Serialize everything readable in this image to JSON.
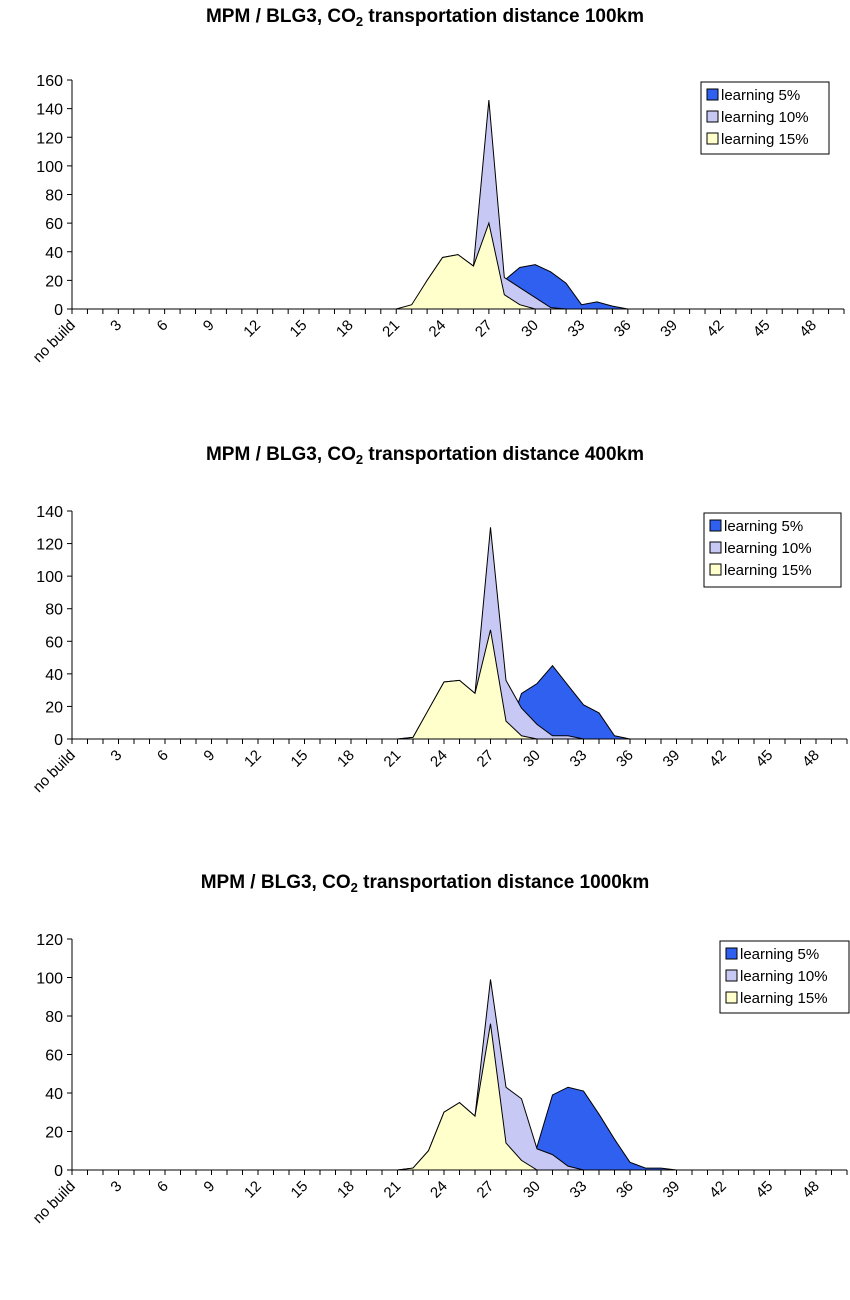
{
  "chart_data": [
    {
      "type": "area",
      "title": {
        "prefix": "MPM / BLG3, CO",
        "subscript": "2",
        "suffix": " transportation distance 100km"
      },
      "ylim": [
        0,
        160
      ],
      "yticks": [
        0,
        20,
        40,
        60,
        80,
        100,
        120,
        140,
        160
      ],
      "xlim": [
        0,
        50
      ],
      "x_tick_labels": [
        {
          "x": 0,
          "label": "no build"
        },
        {
          "x": 3,
          "label": "3"
        },
        {
          "x": 6,
          "label": "6"
        },
        {
          "x": 9,
          "label": "9"
        },
        {
          "x": 12,
          "label": "12"
        },
        {
          "x": 15,
          "label": "15"
        },
        {
          "x": 18,
          "label": "18"
        },
        {
          "x": 21,
          "label": "21"
        },
        {
          "x": 24,
          "label": "24"
        },
        {
          "x": 27,
          "label": "27"
        },
        {
          "x": 30,
          "label": "30"
        },
        {
          "x": 33,
          "label": "33"
        },
        {
          "x": 36,
          "label": "36"
        },
        {
          "x": 39,
          "label": "39"
        },
        {
          "x": 42,
          "label": "42"
        },
        {
          "x": 45,
          "label": "45"
        },
        {
          "x": 48,
          "label": "48"
        }
      ],
      "legend_position": "top-right",
      "series": [
        {
          "name": "learning 5%",
          "color": "#3060f0",
          "points": [
            [
              0,
              0
            ],
            [
              27,
              0
            ],
            [
              28,
              20
            ],
            [
              29,
              29
            ],
            [
              30,
              31
            ],
            [
              31,
              26
            ],
            [
              32,
              18
            ],
            [
              33,
              3
            ],
            [
              34,
              5
            ],
            [
              35,
              2
            ],
            [
              36,
              0
            ],
            [
              50,
              0
            ]
          ]
        },
        {
          "name": "learning 10%",
          "color": "#c8c8f4",
          "points": [
            [
              0,
              0
            ],
            [
              21,
              0
            ],
            [
              22,
              2
            ],
            [
              23,
              20
            ],
            [
              24,
              36
            ],
            [
              25,
              38
            ],
            [
              26,
              30
            ],
            [
              27,
              146
            ],
            [
              28,
              22
            ],
            [
              29,
              15
            ],
            [
              30,
              8
            ],
            [
              31,
              1
            ],
            [
              32,
              0
            ],
            [
              50,
              0
            ]
          ]
        },
        {
          "name": "learning 15%",
          "color": "#ffffcc",
          "points": [
            [
              0,
              0
            ],
            [
              21,
              0
            ],
            [
              22,
              3
            ],
            [
              23,
              20
            ],
            [
              24,
              36
            ],
            [
              25,
              38
            ],
            [
              26,
              30
            ],
            [
              27,
              60
            ],
            [
              28,
              10
            ],
            [
              29,
              3
            ],
            [
              30,
              0
            ],
            [
              50,
              0
            ]
          ]
        }
      ]
    },
    {
      "type": "area",
      "title": {
        "prefix": "MPM / BLG3, CO",
        "subscript": "2",
        "suffix": " transportation distance 400km"
      },
      "ylim": [
        0,
        140
      ],
      "yticks": [
        0,
        20,
        40,
        60,
        80,
        100,
        120,
        140
      ],
      "xlim": [
        0,
        50
      ],
      "x_tick_labels": [
        {
          "x": 0,
          "label": "no build"
        },
        {
          "x": 3,
          "label": "3"
        },
        {
          "x": 6,
          "label": "6"
        },
        {
          "x": 9,
          "label": "9"
        },
        {
          "x": 12,
          "label": "12"
        },
        {
          "x": 15,
          "label": "15"
        },
        {
          "x": 18,
          "label": "18"
        },
        {
          "x": 21,
          "label": "21"
        },
        {
          "x": 24,
          "label": "24"
        },
        {
          "x": 27,
          "label": "27"
        },
        {
          "x": 30,
          "label": "30"
        },
        {
          "x": 33,
          "label": "33"
        },
        {
          "x": 36,
          "label": "36"
        },
        {
          "x": 39,
          "label": "39"
        },
        {
          "x": 42,
          "label": "42"
        },
        {
          "x": 45,
          "label": "45"
        },
        {
          "x": 48,
          "label": "48"
        }
      ],
      "legend_position": "top-right",
      "series": [
        {
          "name": "learning 5%",
          "color": "#3060f0",
          "points": [
            [
              0,
              0
            ],
            [
              28,
              0
            ],
            [
              29,
              28
            ],
            [
              30,
              34
            ],
            [
              31,
              45
            ],
            [
              32,
              33
            ],
            [
              33,
              21
            ],
            [
              34,
              16
            ],
            [
              35,
              2
            ],
            [
              36,
              0
            ],
            [
              50,
              0
            ]
          ]
        },
        {
          "name": "learning 10%",
          "color": "#c8c8f4",
          "points": [
            [
              0,
              0
            ],
            [
              21,
              0
            ],
            [
              22,
              1
            ],
            [
              23,
              18
            ],
            [
              24,
              35
            ],
            [
              25,
              36
            ],
            [
              26,
              28
            ],
            [
              27,
              130
            ],
            [
              28,
              36
            ],
            [
              29,
              19
            ],
            [
              30,
              9
            ],
            [
              31,
              2
            ],
            [
              32,
              2
            ],
            [
              33,
              0
            ],
            [
              50,
              0
            ]
          ]
        },
        {
          "name": "learning 15%",
          "color": "#ffffcc",
          "points": [
            [
              0,
              0
            ],
            [
              21,
              0
            ],
            [
              22,
              1
            ],
            [
              23,
              18
            ],
            [
              24,
              35
            ],
            [
              25,
              36
            ],
            [
              26,
              28
            ],
            [
              27,
              67
            ],
            [
              28,
              11
            ],
            [
              29,
              2
            ],
            [
              30,
              0
            ],
            [
              50,
              0
            ]
          ]
        }
      ]
    },
    {
      "type": "area",
      "title": {
        "prefix": "MPM / BLG3, CO",
        "subscript": "2",
        "suffix": " transportation distance 1000km"
      },
      "ylim": [
        0,
        120
      ],
      "yticks": [
        0,
        20,
        40,
        60,
        80,
        100,
        120
      ],
      "xlim": [
        0,
        50
      ],
      "x_tick_labels": [
        {
          "x": 0,
          "label": "no build"
        },
        {
          "x": 3,
          "label": "3"
        },
        {
          "x": 6,
          "label": "6"
        },
        {
          "x": 9,
          "label": "9"
        },
        {
          "x": 12,
          "label": "12"
        },
        {
          "x": 15,
          "label": "15"
        },
        {
          "x": 18,
          "label": "18"
        },
        {
          "x": 21,
          "label": "21"
        },
        {
          "x": 24,
          "label": "24"
        },
        {
          "x": 27,
          "label": "27"
        },
        {
          "x": 30,
          "label": "30"
        },
        {
          "x": 33,
          "label": "33"
        },
        {
          "x": 36,
          "label": "36"
        },
        {
          "x": 39,
          "label": "39"
        },
        {
          "x": 42,
          "label": "42"
        },
        {
          "x": 45,
          "label": "45"
        },
        {
          "x": 48,
          "label": "48"
        }
      ],
      "legend_position": "top-right",
      "series": [
        {
          "name": "learning 5%",
          "color": "#3060f0",
          "points": [
            [
              0,
              0
            ],
            [
              29,
              0
            ],
            [
              30,
              12
            ],
            [
              31,
              39
            ],
            [
              32,
              43
            ],
            [
              33,
              41
            ],
            [
              34,
              29
            ],
            [
              35,
              16
            ],
            [
              36,
              4
            ],
            [
              37,
              1
            ],
            [
              38,
              1
            ],
            [
              39,
              0
            ],
            [
              50,
              0
            ]
          ]
        },
        {
          "name": "learning 10%",
          "color": "#c8c8f4",
          "points": [
            [
              0,
              0
            ],
            [
              21,
              0
            ],
            [
              22,
              1
            ],
            [
              23,
              10
            ],
            [
              24,
              30
            ],
            [
              25,
              35
            ],
            [
              26,
              28
            ],
            [
              27,
              99
            ],
            [
              28,
              43
            ],
            [
              29,
              37
            ],
            [
              30,
              11
            ],
            [
              31,
              8
            ],
            [
              32,
              2
            ],
            [
              33,
              0
            ],
            [
              50,
              0
            ]
          ]
        },
        {
          "name": "learning 15%",
          "color": "#ffffcc",
          "points": [
            [
              0,
              0
            ],
            [
              21,
              0
            ],
            [
              22,
              1
            ],
            [
              23,
              10
            ],
            [
              24,
              30
            ],
            [
              25,
              35
            ],
            [
              26,
              28
            ],
            [
              27,
              76
            ],
            [
              28,
              14
            ],
            [
              29,
              5
            ],
            [
              30,
              0
            ],
            [
              50,
              0
            ]
          ]
        }
      ]
    }
  ]
}
